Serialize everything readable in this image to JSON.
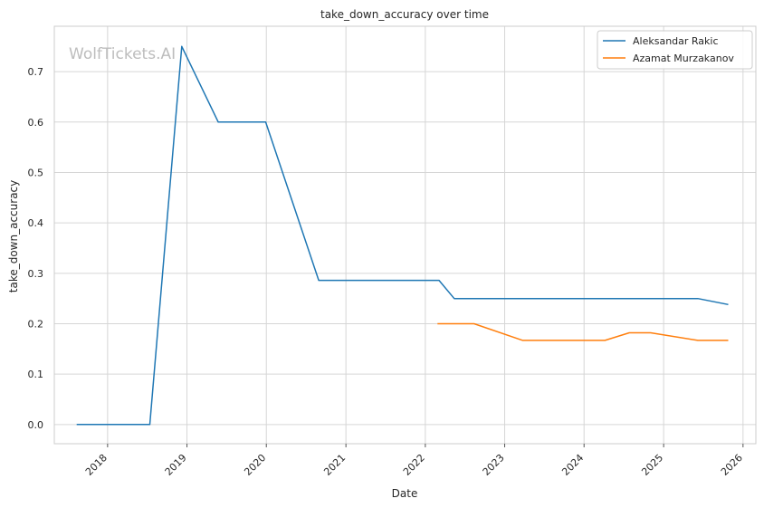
{
  "watermark": "WolfTickets.AI",
  "chart_data": {
    "type": "line",
    "title": "take_down_accuracy over time",
    "xlabel": "Date",
    "ylabel": "take_down_accuracy",
    "x_ticks": [
      "2018",
      "2019",
      "2020",
      "2021",
      "2022",
      "2023",
      "2024",
      "2025",
      "2026"
    ],
    "y_ticks": [
      "0.0",
      "0.1",
      "0.2",
      "0.3",
      "0.4",
      "0.5",
      "0.6",
      "0.7"
    ],
    "xlim": [
      "2017-05-01",
      "2026-03-01"
    ],
    "ylim": [
      -0.038,
      0.79
    ],
    "grid": true,
    "legend_position": "top-right",
    "series": [
      {
        "name": "Aleksandar Rakic",
        "color": "#1f77b4",
        "points": [
          [
            "2017-08-12",
            0.0
          ],
          [
            "2018-07-14",
            0.0
          ],
          [
            "2018-12-08",
            0.75
          ],
          [
            "2019-05-25",
            0.6
          ],
          [
            "2019-12-29",
            0.6
          ],
          [
            "2020-08-29",
            0.286
          ],
          [
            "2022-03-05",
            0.286
          ],
          [
            "2022-05-14",
            0.25
          ],
          [
            "2025-06-07",
            0.25
          ],
          [
            "2025-10-25",
            0.238
          ]
        ]
      },
      {
        "name": "Azamat Murzakanov",
        "color": "#ff7f0e",
        "points": [
          [
            "2022-02-26",
            0.2
          ],
          [
            "2022-08-13",
            0.2
          ],
          [
            "2023-03-25",
            0.167
          ],
          [
            "2024-04-06",
            0.167
          ],
          [
            "2024-07-27",
            0.182
          ],
          [
            "2024-11-02",
            0.182
          ],
          [
            "2025-06-07",
            0.167
          ],
          [
            "2025-10-25",
            0.167
          ]
        ]
      }
    ]
  }
}
